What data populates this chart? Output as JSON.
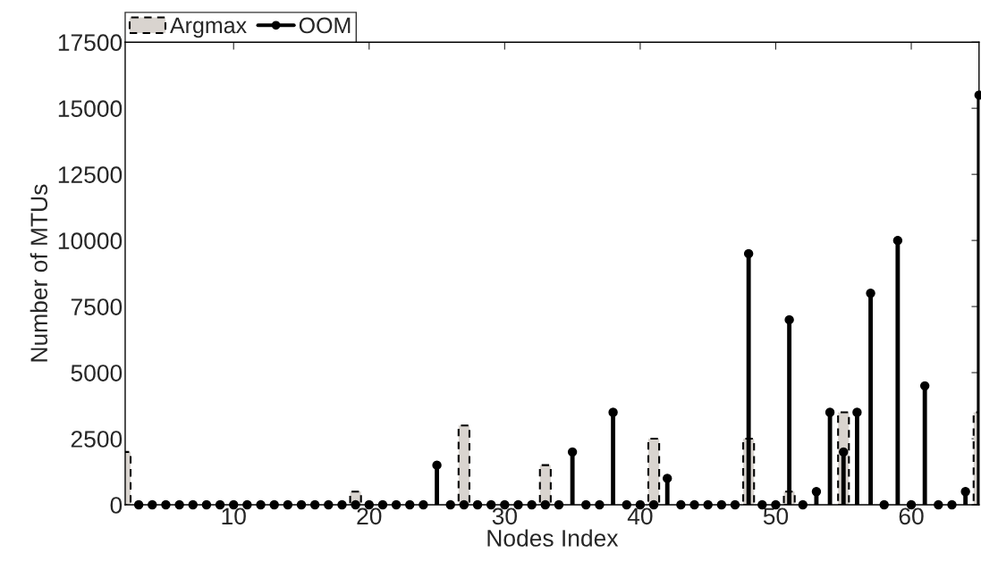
{
  "chart_data": {
    "type": "bar",
    "xlabel": "Nodes Index",
    "ylabel": "Number of MTUs",
    "xlim": [
      2,
      65
    ],
    "xticks": [
      10,
      20,
      30,
      40,
      50,
      60
    ],
    "ylim": [
      0,
      17500
    ],
    "yticks": [
      0,
      2500,
      5000,
      7500,
      10000,
      12500,
      15000,
      17500
    ],
    "grid": false,
    "legend": "top left",
    "marker": "circle",
    "series": [
      {
        "name": "Argmax",
        "color": "#d9d4cf",
        "line_style": "dashed",
        "x": [
          2,
          19,
          27,
          33,
          41,
          48,
          51,
          55,
          65
        ],
        "values": [
          2000,
          500,
          3000,
          1500,
          2500,
          2500,
          500,
          3500,
          3500
        ]
      },
      {
        "name": "OOM",
        "type": "lollipop",
        "color": "#000000",
        "x": [
          3,
          4,
          5,
          6,
          7,
          8,
          9,
          10,
          11,
          12,
          13,
          14,
          15,
          16,
          17,
          18,
          19,
          20,
          21,
          22,
          23,
          24,
          25,
          26,
          27,
          28,
          29,
          30,
          31,
          32,
          33,
          34,
          35,
          36,
          37,
          38,
          39,
          40,
          41,
          42,
          43,
          44,
          45,
          46,
          47,
          48,
          49,
          50,
          51,
          52,
          53,
          54,
          55,
          56,
          57,
          58,
          59,
          60,
          61,
          62,
          63,
          64,
          65
        ],
        "values": [
          0,
          0,
          0,
          0,
          0,
          0,
          0,
          0,
          0,
          0,
          0,
          0,
          0,
          0,
          0,
          0,
          0,
          0,
          0,
          0,
          0,
          0,
          1500,
          0,
          0,
          0,
          0,
          0,
          0,
          0,
          0,
          0,
          2000,
          0,
          0,
          3500,
          0,
          0,
          0,
          1000,
          0,
          0,
          0,
          0,
          0,
          9500,
          0,
          0,
          7000,
          0,
          500,
          3500,
          2000,
          3500,
          8000,
          0,
          10000,
          0,
          4500,
          0,
          0,
          500,
          15500
        ]
      }
    ]
  }
}
